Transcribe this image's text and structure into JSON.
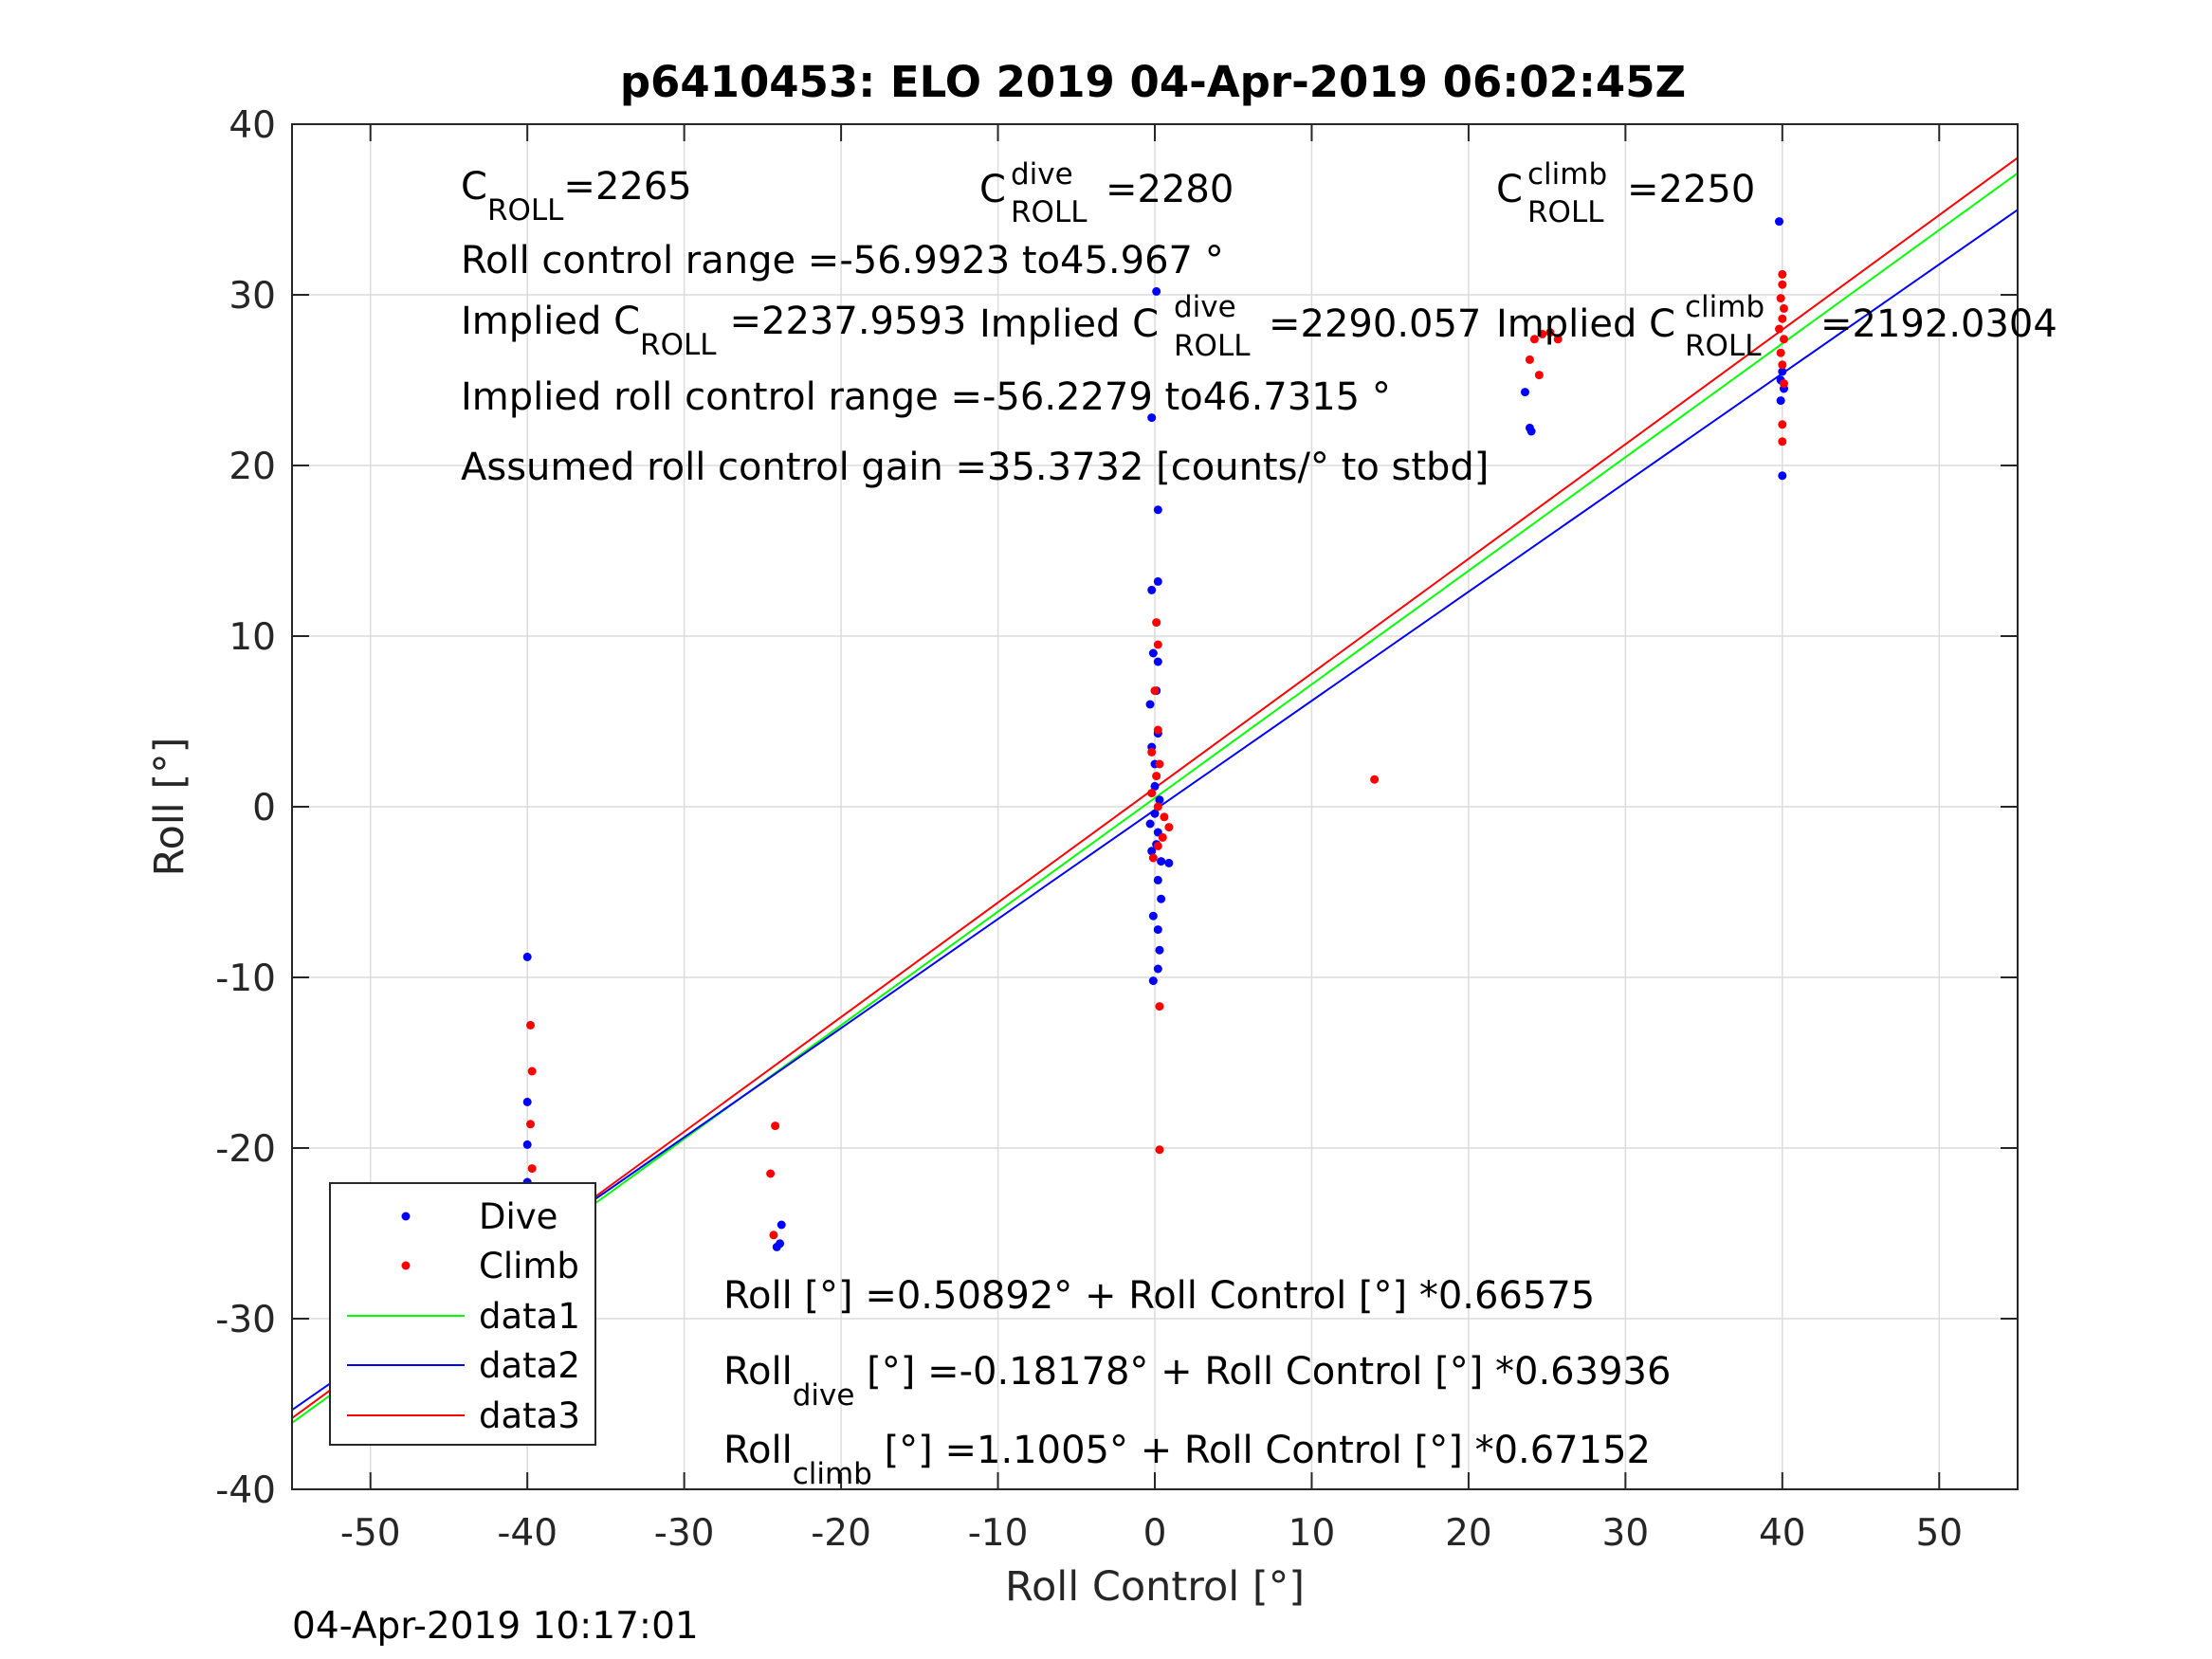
{
  "chart_data": {
    "type": "scatter",
    "title": "p6410453: ELO 2019 04-Apr-2019 06:02:45Z",
    "xlabel": "Roll Control [°]",
    "ylabel": "Roll [°]",
    "xlim": [
      -55,
      55
    ],
    "ylim": [
      -40,
      40
    ],
    "xticks": [
      "-50",
      "-40",
      "-30",
      "-20",
      "-10",
      "0",
      "10",
      "20",
      "30",
      "40",
      "50"
    ],
    "yticks": [
      "-40",
      "-30",
      "-20",
      "-10",
      "0",
      "10",
      "20",
      "30",
      "40"
    ],
    "grid": true,
    "legend_location": "bottom-left",
    "legend": [
      "Dive",
      "Climb",
      "data1",
      "data2",
      "data3"
    ],
    "colors": {
      "dive": "#0000ff",
      "climb": "#ff0000",
      "data1": "#00ff00",
      "data2": "#0000ff",
      "data3": "#ff0000"
    },
    "series": [
      {
        "name": "Dive",
        "kind": "points",
        "points": [
          [
            -40,
            -8.8
          ],
          [
            -40,
            -17.3
          ],
          [
            -40,
            -19.8
          ],
          [
            -40,
            -22
          ],
          [
            -40,
            -23.8
          ],
          [
            -40,
            -24.8
          ],
          [
            -40,
            -25.6
          ],
          [
            -40,
            -26.5
          ],
          [
            -40,
            -27.2
          ],
          [
            -23.8,
            -24.5
          ],
          [
            -23.9,
            -25.6
          ],
          [
            -24.1,
            -25.8
          ],
          [
            0.1,
            30.2
          ],
          [
            -0.2,
            22.8
          ],
          [
            0.2,
            17.4
          ],
          [
            0.2,
            13.2
          ],
          [
            -0.2,
            12.7
          ],
          [
            -0.1,
            9
          ],
          [
            0.2,
            8.5
          ],
          [
            0.1,
            6.8
          ],
          [
            -0.3,
            6
          ],
          [
            0.2,
            4.3
          ],
          [
            -0.2,
            3.5
          ],
          [
            0,
            2.5
          ],
          [
            0,
            1.2
          ],
          [
            0.3,
            0.4
          ],
          [
            0,
            -0.4
          ],
          [
            -0.3,
            -1
          ],
          [
            0.2,
            -1.5
          ],
          [
            0.1,
            -2.2
          ],
          [
            -0.2,
            -2.6
          ],
          [
            0.4,
            -3.2
          ],
          [
            0.9,
            -3.3
          ],
          [
            0.2,
            -4.3
          ],
          [
            0.4,
            -5.4
          ],
          [
            -0.1,
            -6.4
          ],
          [
            0.2,
            -7.2
          ],
          [
            0.3,
            -8.4
          ],
          [
            0.2,
            -9.5
          ],
          [
            -0.1,
            -10.2
          ],
          [
            23.6,
            24.3
          ],
          [
            23.9,
            22.2
          ],
          [
            24,
            22
          ],
          [
            39.8,
            34.3
          ],
          [
            40,
            25.5
          ],
          [
            39.9,
            25
          ],
          [
            40.1,
            24.5
          ],
          [
            39.9,
            23.8
          ],
          [
            40,
            19.4
          ]
        ]
      },
      {
        "name": "Climb",
        "kind": "points",
        "points": [
          [
            -39.8,
            -12.8
          ],
          [
            -39.7,
            -15.5
          ],
          [
            -39.8,
            -18.6
          ],
          [
            -39.7,
            -21.2
          ],
          [
            -39.8,
            -22.5
          ],
          [
            -39.6,
            -23.5
          ],
          [
            -39.7,
            -25
          ],
          [
            -39.8,
            -25.8
          ],
          [
            -39.6,
            -26.4
          ],
          [
            -39.8,
            -28.2
          ],
          [
            -24.2,
            -18.7
          ],
          [
            -24.5,
            -21.5
          ],
          [
            -24.3,
            -25.1
          ],
          [
            0.1,
            10.8
          ],
          [
            0.2,
            9.5
          ],
          [
            0,
            6.8
          ],
          [
            0.2,
            4.5
          ],
          [
            -0.2,
            3.2
          ],
          [
            0.3,
            2.5
          ],
          [
            0.1,
            1.8
          ],
          [
            -0.2,
            0.8
          ],
          [
            0.2,
            0
          ],
          [
            0.6,
            -0.6
          ],
          [
            0.9,
            -1.2
          ],
          [
            0.5,
            -1.8
          ],
          [
            0.2,
            -2.3
          ],
          [
            -0.1,
            -3
          ],
          [
            0.3,
            -11.7
          ],
          [
            0.3,
            -20.1
          ],
          [
            14,
            1.6
          ],
          [
            24.2,
            27.4
          ],
          [
            23.9,
            26.2
          ],
          [
            24.5,
            25.3
          ],
          [
            25.2,
            27.8
          ],
          [
            25.7,
            27.4
          ],
          [
            24.7,
            27.7
          ],
          [
            40,
            31.2
          ],
          [
            40,
            30.6
          ],
          [
            39.9,
            29.8
          ],
          [
            40.1,
            29.2
          ],
          [
            40,
            28.6
          ],
          [
            39.8,
            28
          ],
          [
            40.1,
            27.4
          ],
          [
            39.9,
            26.6
          ],
          [
            40,
            25.9
          ],
          [
            40.1,
            24.8
          ],
          [
            40,
            22.4
          ],
          [
            40,
            21.4
          ]
        ]
      },
      {
        "name": "data1",
        "kind": "line",
        "x": [
          -55,
          55
        ],
        "y": [
          -36.11,
          37.13
        ]
      },
      {
        "name": "data2",
        "kind": "line",
        "x": [
          -55,
          55
        ],
        "y": [
          -35.35,
          34.98
        ]
      },
      {
        "name": "data3",
        "kind": "line",
        "x": [
          -55,
          55
        ],
        "y": [
          -35.83,
          38.03
        ]
      }
    ],
    "annotations": {
      "croll": {
        "main": "C",
        "sub": "ROLL",
        "value": "=2265"
      },
      "croll_dive": {
        "main": "C",
        "sup": "dive",
        "sub": "ROLL",
        "value": "=2280"
      },
      "croll_climb": {
        "main": "C",
        "sup": "climb",
        "sub": "ROLL",
        "value": "=2250"
      },
      "range": "Roll control range =-56.9923 to45.967 °",
      "implied_croll": {
        "prefix": "Implied C",
        "sub": "ROLL",
        "value": "=2237.9593"
      },
      "implied_croll_dive": {
        "prefix": "Implied C",
        "sup": "dive",
        "sub": "ROLL",
        "value": "=2290.057"
      },
      "implied_croll_climb": {
        "prefix": "Implied C",
        "sup": "climb",
        "sub": "ROLL",
        "value": "=2192.0304"
      },
      "implied_range": "Implied roll control range =-56.2279 to46.7315 °",
      "gain": "Assumed roll control gain =35.3732 [counts/° to stbd]",
      "fit_all": "Roll [°] =0.50892° + Roll Control [°] *0.66575",
      "fit_dive": {
        "main": "Roll",
        "sub": "dive",
        "rest": " [°] =-0.18178° + Roll Control [°] *0.63936"
      },
      "fit_climb": {
        "main": "Roll",
        "sub": "climb",
        "rest": " [°] =1.1005° + Roll Control [°] *0.67152"
      }
    }
  },
  "timestamp": "04-Apr-2019 10:17:01"
}
